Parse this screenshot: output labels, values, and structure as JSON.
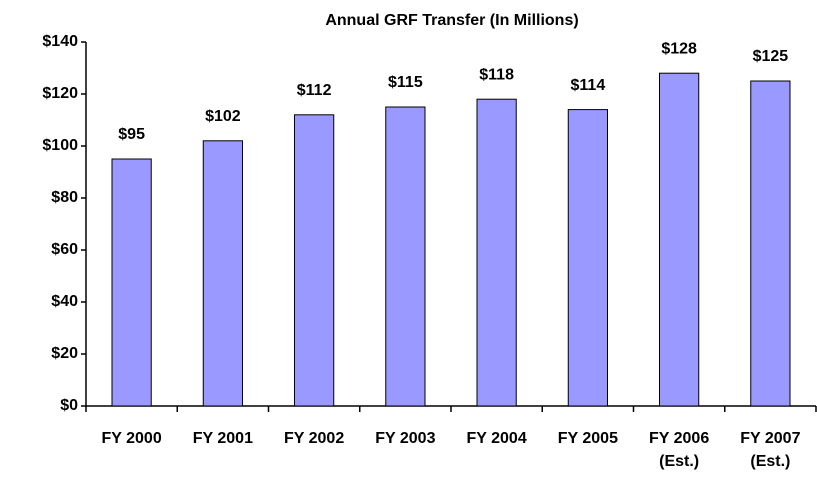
{
  "chart_data": {
    "type": "bar",
    "title": "Annual GRF Transfer (In Millions)",
    "categories": [
      "FY 2000",
      "FY 2001",
      "FY 2002",
      "FY 2003",
      "FY 2004",
      "FY 2005",
      "FY 2006\n(Est.)",
      "FY 2007\n(Est.)"
    ],
    "values": [
      95,
      102,
      112,
      115,
      118,
      114,
      128,
      125
    ],
    "value_labels": [
      "$95",
      "$102",
      "$112",
      "$115",
      "$118",
      "$114",
      "$128",
      "$125"
    ],
    "color": "#9999ff",
    "ylim": [
      0,
      140
    ],
    "yticks": [
      {
        "value": 0,
        "label": "$0"
      },
      {
        "value": 20,
        "label": "$20"
      },
      {
        "value": 40,
        "label": "$40"
      },
      {
        "value": 60,
        "label": "$60"
      },
      {
        "value": 80,
        "label": "$80"
      },
      {
        "value": 100,
        "label": "$100"
      },
      {
        "value": 120,
        "label": "$120"
      },
      {
        "value": 140,
        "label": "$140"
      }
    ],
    "grid": false
  }
}
